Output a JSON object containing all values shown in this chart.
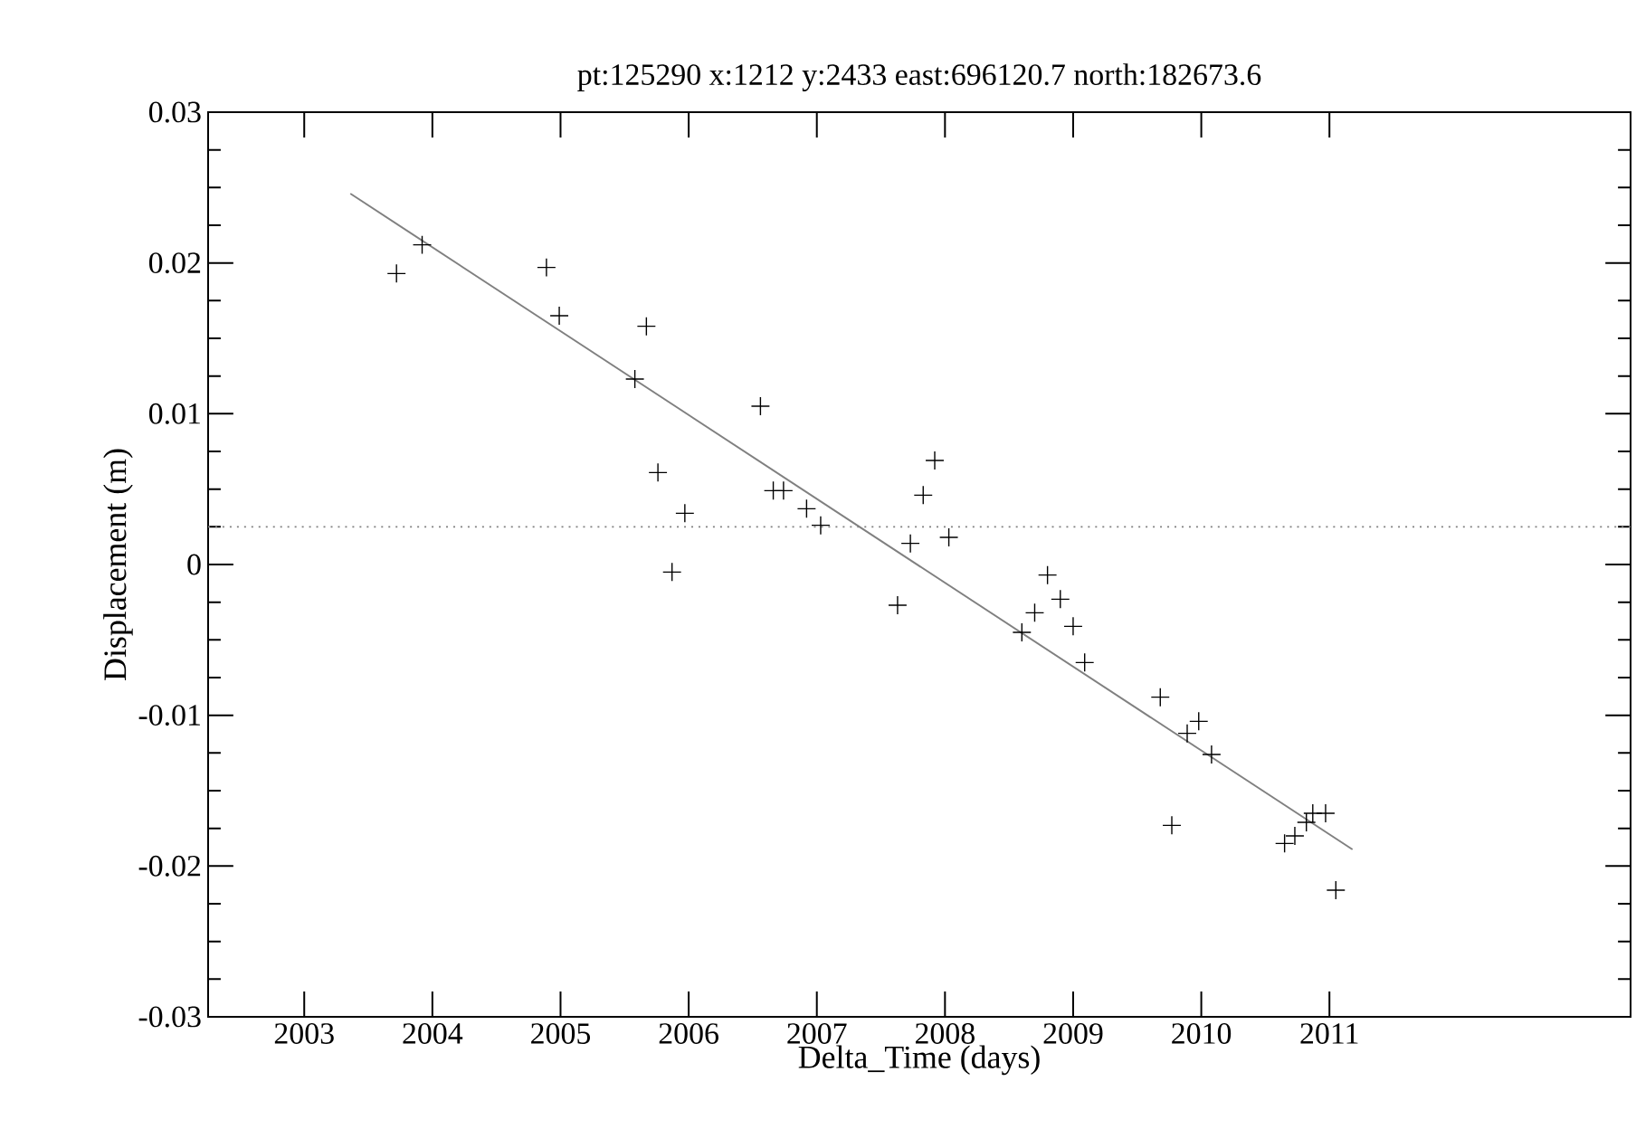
{
  "chart_data": {
    "type": "scatter",
    "title": "pt:125290  x:1212  y:2433  east:696120.7  north:182673.6",
    "xlabel": "Delta_Time (days)",
    "ylabel": "Displacement (m)",
    "xlim": [
      2002.25,
      2013.35
    ],
    "ylim": [
      -0.03,
      0.03
    ],
    "xticks": [
      2003,
      2004,
      2005,
      2006,
      2007,
      2008,
      2009,
      2010,
      2011
    ],
    "yticks": [
      -0.03,
      -0.02,
      -0.01,
      0,
      0.01,
      0.02,
      0.03
    ],
    "tick_labels": "xy",
    "series": [
      {
        "marker": "cross",
        "color": "#000000",
        "x": [
          2003.72,
          2003.92,
          2004.89,
          2004.99,
          2005.58,
          2005.67,
          2005.76,
          2005.87,
          2005.97,
          2006.56,
          2006.66,
          2006.74,
          2006.92,
          2007.03,
          2007.63,
          2007.73,
          2007.83,
          2007.92,
          2008.03,
          2008.6,
          2008.7,
          2008.8,
          2008.9,
          2009.0,
          2009.09,
          2009.68,
          2009.77,
          2009.89,
          2009.98,
          2010.08,
          2010.65,
          2010.73,
          2010.82,
          2010.87,
          2010.97,
          2011.05
        ],
        "values": [
          0.0193,
          0.0212,
          0.0197,
          0.0165,
          0.0123,
          0.0158,
          0.0061,
          -0.0005,
          0.0034,
          0.0105,
          0.0049,
          0.0049,
          0.0037,
          0.0026,
          -0.0027,
          0.0014,
          0.0046,
          0.0069,
          0.0018,
          -0.0045,
          -0.0032,
          -0.0007,
          -0.0023,
          -0.0041,
          -0.0065,
          -0.0088,
          -0.0173,
          -0.0112,
          -0.0104,
          -0.0126,
          -0.0185,
          -0.018,
          -0.0171,
          -0.0165,
          -0.0165,
          -0.0216
        ]
      },
      {
        "type": "line",
        "marker": "none",
        "color": "#808080",
        "x": [
          2003.36,
          2011.18
        ],
        "values": [
          0.0246,
          -0.0189
        ]
      }
    ],
    "ref_lines": [
      {
        "axis": "y",
        "value": 0.0025,
        "color": "#808080",
        "line_style": "dotted"
      }
    ]
  }
}
